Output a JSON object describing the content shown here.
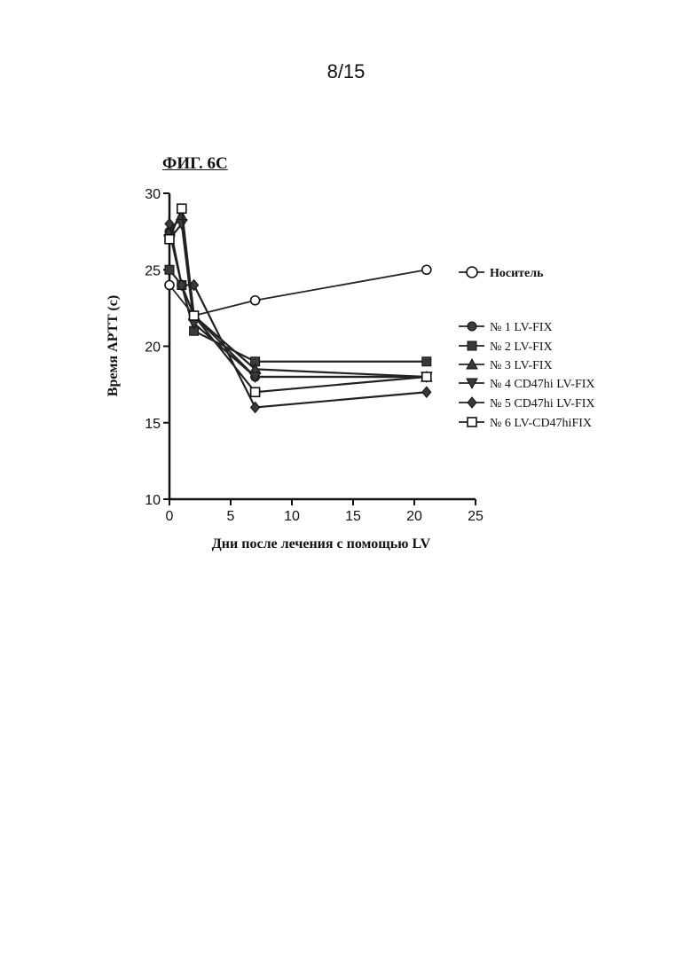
{
  "page": {
    "number": "8/15"
  },
  "figure": {
    "title": "ФИГ. 6С"
  },
  "chart_data": {
    "type": "line",
    "xlabel": "Дни после лечения с помощью LV",
    "ylabel": "Время APTT (с)",
    "xlim": [
      0,
      25
    ],
    "ylim": [
      10,
      30
    ],
    "xticks": [
      0,
      5,
      10,
      15,
      20,
      25
    ],
    "yticks": [
      10,
      15,
      20,
      25,
      30
    ],
    "grid": false,
    "legend_position": "right",
    "series": [
      {
        "name": "Носитель",
        "marker": "circle-open",
        "x": [
          0,
          2,
          7,
          21
        ],
        "y": [
          24,
          22,
          23,
          25
        ]
      },
      {
        "name": "№ 1 LV-FIX",
        "marker": "circle",
        "x": [
          0,
          1,
          2,
          7,
          21
        ],
        "y": [
          27.5,
          24,
          22,
          18,
          18
        ]
      },
      {
        "name": "№ 2 LV-FIX",
        "marker": "square",
        "x": [
          0,
          1,
          2,
          7,
          21
        ],
        "y": [
          25,
          24,
          21,
          19,
          19
        ]
      },
      {
        "name": "№ 3 LV-FIX",
        "marker": "triangle-up",
        "x": [
          0,
          1,
          2,
          7,
          21
        ],
        "y": [
          27.5,
          28.5,
          22,
          18.5,
          18
        ]
      },
      {
        "name": "№ 4 CD47hi LV-FIX",
        "marker": "triangle-down",
        "x": [
          0,
          1,
          2,
          7,
          21
        ],
        "y": [
          27,
          28,
          21.5,
          18,
          18
        ]
      },
      {
        "name": "№ 5 CD47hi LV-FIX",
        "marker": "diamond",
        "x": [
          0,
          1,
          2,
          7,
          21
        ],
        "y": [
          28,
          24,
          24,
          16,
          17
        ]
      },
      {
        "name": "№ 6 LV-CD47hiFIX",
        "marker": "square-open",
        "x": [
          0,
          1,
          2,
          7,
          21
        ],
        "y": [
          27,
          29,
          22,
          17,
          18
        ]
      }
    ]
  }
}
